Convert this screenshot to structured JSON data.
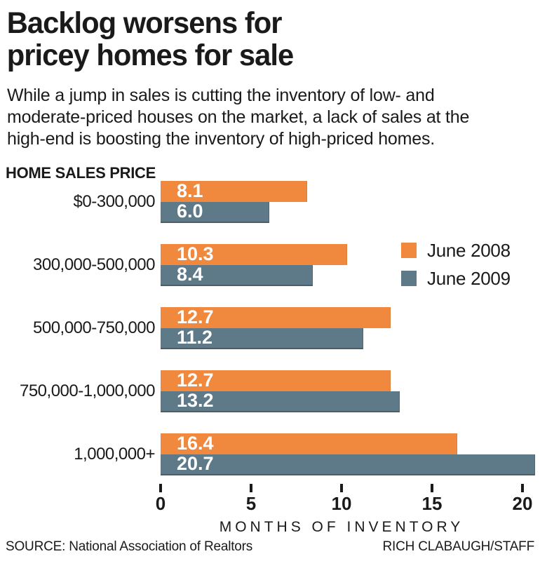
{
  "title": "Backlog worsens for\npricey homes for sale",
  "subtitle": "While a jump in sales is cutting the inventory of low- and\nmoderate-priced houses on the market, a lack of sales at the\nhigh-end is boosting the inventory of high-priced homes.",
  "section_label": "HOME SALES PRICE",
  "chart_data": {
    "type": "bar",
    "orientation": "horizontal",
    "title": "Backlog worsens for pricey homes for sale",
    "categories": [
      "$0-300,000",
      "300,000-500,000",
      "500,000-750,000",
      "750,000-1,000,000",
      "1,000,000+"
    ],
    "series": [
      {
        "name": "June 2008",
        "color": "#F0893E",
        "values": [
          8.1,
          10.3,
          12.7,
          12.7,
          16.4
        ]
      },
      {
        "name": "June 2009",
        "color": "#5E7A88",
        "values": [
          6.0,
          8.4,
          11.2,
          13.2,
          20.7
        ]
      }
    ],
    "xlabel": "MONTHS OF INVENTORY",
    "x_ticks": [
      0,
      5,
      10,
      15,
      20
    ],
    "xlim": [
      0,
      20
    ],
    "value_labels": true,
    "grid": false,
    "legend_position": "right of second category group"
  },
  "legend": [
    {
      "label": "June 2008",
      "color": "#F0893E"
    },
    {
      "label": "June 2009",
      "color": "#5E7A88"
    }
  ],
  "footer": {
    "source": "SOURCE: National Association of Realtors",
    "credit": "RICH CLABAUGH/STAFF"
  },
  "colors": {
    "june_2008": "#F0893E",
    "june_2009": "#5E7A88",
    "text": "#1A1A1A",
    "value_label": "#FFFFFF",
    "background": "#FFFFFF"
  }
}
